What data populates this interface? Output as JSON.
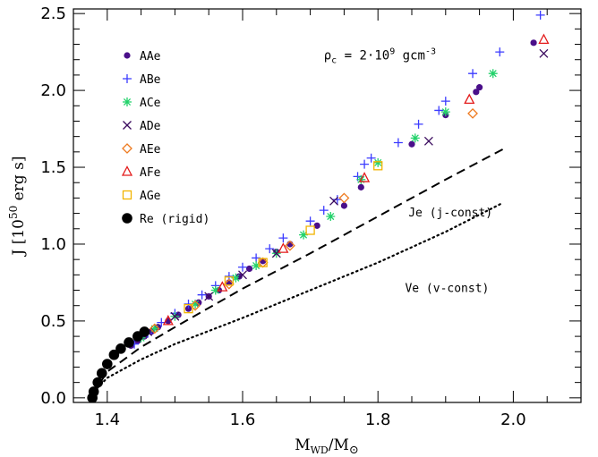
{
  "chart_data": {
    "type": "scatter",
    "xlabel": "M_WD/M_⊙",
    "ylabel": "J [10^50 erg s]",
    "xlim": [
      1.35,
      2.1
    ],
    "ylim": [
      -0.03,
      2.53
    ],
    "xticks": [
      1.4,
      1.6,
      1.8,
      2.0
    ],
    "xtick_labels": [
      "1.4",
      "1.6",
      "1.8",
      "2.0"
    ],
    "yticks": [
      0.0,
      0.5,
      1.0,
      1.5,
      2.0,
      2.5
    ],
    "ytick_labels": [
      "0.0",
      "0.5",
      "1.0",
      "1.5",
      "2.0",
      "2.5"
    ],
    "annotations": [
      {
        "id": "rho",
        "text": "ρ_c = 2·10^9 gcm^-3",
        "x": 1.72,
        "y": 2.2
      },
      {
        "id": "je",
        "text": "Je (j-const)",
        "x": 1.845,
        "y": 1.18
      },
      {
        "id": "ve",
        "text": "Ve (v-const)",
        "x": 1.84,
        "y": 0.69
      }
    ],
    "legend": {
      "position": "top-left"
    },
    "series": [
      {
        "name": "AAe",
        "marker": "dot",
        "color": "#4a0f8a",
        "x": [
          1.435,
          1.445,
          1.455,
          1.465,
          1.475,
          1.49,
          1.505,
          1.52,
          1.535,
          1.55,
          1.565,
          1.58,
          1.595,
          1.61,
          1.63,
          1.65,
          1.67,
          1.71,
          1.75,
          1.775,
          1.85,
          1.9,
          1.945,
          1.95,
          2.03
        ],
        "y": [
          0.34,
          0.37,
          0.4,
          0.43,
          0.46,
          0.5,
          0.54,
          0.58,
          0.62,
          0.66,
          0.7,
          0.75,
          0.79,
          0.84,
          0.89,
          0.95,
          1.0,
          1.12,
          1.25,
          1.37,
          1.65,
          1.84,
          1.99,
          2.02,
          2.31
        ]
      },
      {
        "name": "ABe",
        "marker": "plus",
        "color": "#3b3bff",
        "x": [
          1.44,
          1.46,
          1.48,
          1.5,
          1.52,
          1.54,
          1.56,
          1.58,
          1.6,
          1.62,
          1.64,
          1.66,
          1.7,
          1.72,
          1.74,
          1.77,
          1.78,
          1.79,
          1.83,
          1.86,
          1.89,
          1.9,
          1.94,
          1.98,
          2.04
        ],
        "y": [
          0.35,
          0.42,
          0.49,
          0.55,
          0.61,
          0.67,
          0.73,
          0.79,
          0.85,
          0.91,
          0.97,
          1.04,
          1.15,
          1.22,
          1.29,
          1.44,
          1.52,
          1.56,
          1.66,
          1.78,
          1.87,
          1.93,
          2.11,
          2.25,
          2.49
        ]
      },
      {
        "name": "ACe",
        "marker": "asterisk",
        "color": "#22d26a",
        "x": [
          1.45,
          1.47,
          1.5,
          1.53,
          1.56,
          1.59,
          1.62,
          1.65,
          1.69,
          1.73,
          1.775,
          1.8,
          1.855,
          1.9,
          1.97
        ],
        "y": [
          0.39,
          0.45,
          0.53,
          0.61,
          0.7,
          0.78,
          0.86,
          0.94,
          1.06,
          1.18,
          1.42,
          1.53,
          1.69,
          1.86,
          2.11
        ]
      },
      {
        "name": "ADe",
        "marker": "cross",
        "color": "#3a0a5e",
        "x": [
          1.46,
          1.5,
          1.55,
          1.6,
          1.65,
          1.735,
          1.875,
          2.045
        ],
        "y": [
          0.43,
          0.53,
          0.66,
          0.8,
          0.94,
          1.28,
          1.67,
          2.24
        ]
      },
      {
        "name": "AEe",
        "marker": "diamond",
        "color": "#ee7a1f",
        "x": [
          1.47,
          1.53,
          1.58,
          1.63,
          1.67,
          1.75,
          1.94
        ],
        "y": [
          0.45,
          0.6,
          0.74,
          0.88,
          0.99,
          1.3,
          1.85
        ]
      },
      {
        "name": "AFe",
        "marker": "triangle",
        "color": "#e31a1a",
        "x": [
          1.49,
          1.57,
          1.66,
          1.78,
          1.935,
          2.045
        ],
        "y": [
          0.5,
          0.72,
          0.97,
          1.43,
          1.94,
          2.33
        ]
      },
      {
        "name": "AGe",
        "marker": "square",
        "color": "#f2b400",
        "x": [
          1.52,
          1.58,
          1.63,
          1.7,
          1.8
        ],
        "y": [
          0.58,
          0.76,
          0.88,
          1.09,
          1.51
        ]
      },
      {
        "name": "Re (rigid)",
        "marker": "bigdot",
        "color": "#000000",
        "x": [
          1.378,
          1.38,
          1.386,
          1.392,
          1.4,
          1.41,
          1.42,
          1.432,
          1.445,
          1.455
        ],
        "y": [
          0.0,
          0.04,
          0.1,
          0.16,
          0.22,
          0.28,
          0.32,
          0.36,
          0.4,
          0.43
        ]
      }
    ],
    "lines": [
      {
        "name": "Je (j-const)",
        "style": "dashed",
        "x": [
          1.378,
          1.4,
          1.45,
          1.5,
          1.6,
          1.7,
          1.8,
          1.9,
          1.99
        ],
        "y": [
          0.02,
          0.17,
          0.33,
          0.46,
          0.71,
          0.94,
          1.18,
          1.42,
          1.63
        ]
      },
      {
        "name": "Ve (v-const)",
        "style": "dotted",
        "x": [
          1.38,
          1.4,
          1.45,
          1.5,
          1.6,
          1.7,
          1.8,
          1.9,
          1.985
        ],
        "y": [
          0.04,
          0.13,
          0.25,
          0.35,
          0.52,
          0.7,
          0.88,
          1.08,
          1.27
        ]
      }
    ]
  }
}
